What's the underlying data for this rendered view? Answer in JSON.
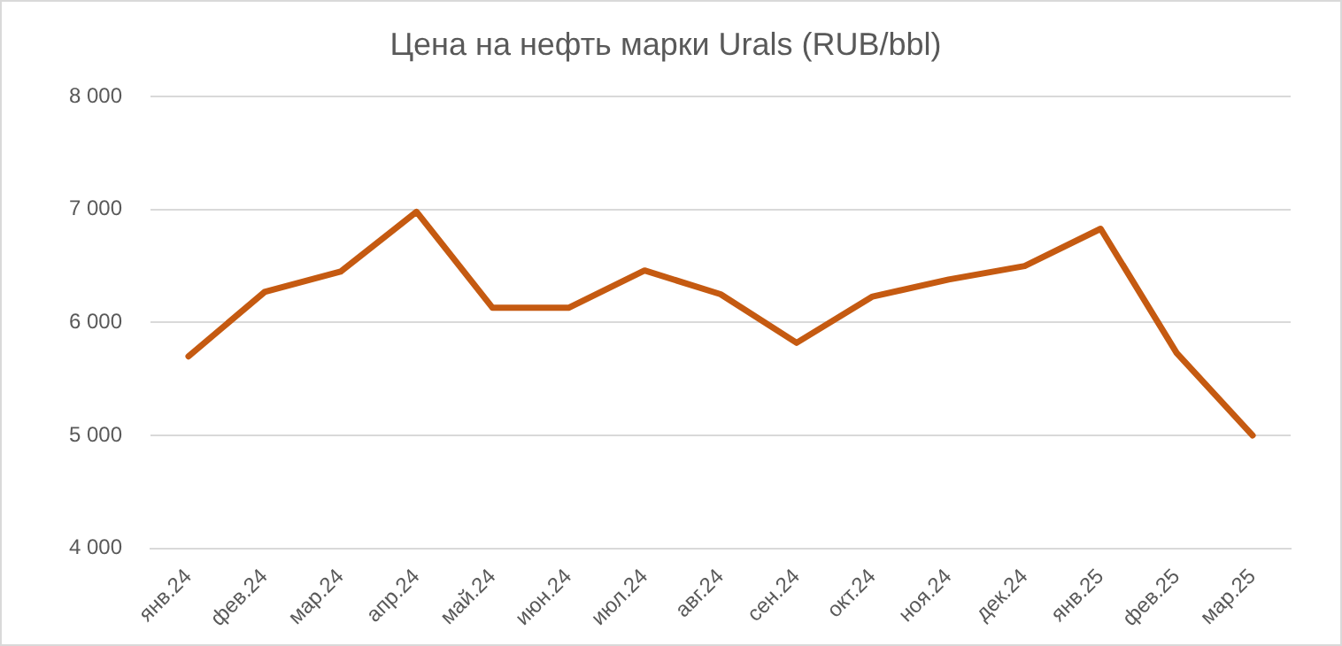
{
  "chart_data": {
    "type": "line",
    "title": "Цена на нефть марки Urals (RUB/bbl)",
    "categories": [
      "янв.24",
      "фев.24",
      "мар.24",
      "апр.24",
      "май.24",
      "июн.24",
      "июл.24",
      "авг.24",
      "сен.24",
      "окт.24",
      "ноя.24",
      "дек.24",
      "янв.25",
      "фев.25",
      "мар.25"
    ],
    "series": [
      {
        "color": "#c55a11",
        "values": [
          5700,
          6270,
          6450,
          6980,
          6130,
          6130,
          6460,
          6250,
          5820,
          6230,
          6380,
          6500,
          6830,
          5730,
          5000
        ]
      }
    ],
    "ylim": [
      4000,
      8000
    ],
    "yticks": [
      {
        "value": 4000,
        "label": "4 000"
      },
      {
        "value": 5000,
        "label": "5 000"
      },
      {
        "value": 6000,
        "label": "6 000"
      },
      {
        "value": 7000,
        "label": "7 000"
      },
      {
        "value": 8000,
        "label": "8 000"
      }
    ],
    "grid": "y",
    "legend": false,
    "marker": "none",
    "line_style": "solid"
  }
}
